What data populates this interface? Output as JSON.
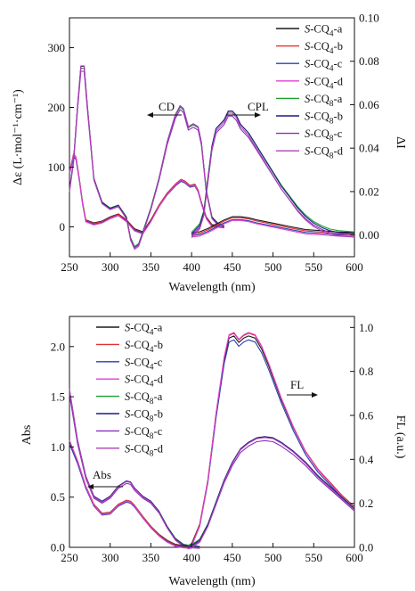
{
  "chart_data": [
    {
      "type": "line",
      "xlabel": "Wavelength (nm)",
      "ylabel_left": "Δε (L·mol⁻¹·cm⁻¹)",
      "ylabel_right": "ΔI",
      "xlim": [
        250,
        600
      ],
      "ylim_left": [
        -50,
        350
      ],
      "ylim_right": [
        -0.01,
        0.1
      ],
      "xticks": [
        "250",
        "300",
        "350",
        "400",
        "450",
        "500",
        "550",
        "600"
      ],
      "yticks_left": [
        "0",
        "100",
        "200",
        "300"
      ],
      "yticks_right": [
        "0.00",
        "0.02",
        "0.04",
        "0.06",
        "0.08",
        "0.10"
      ],
      "annotations": {
        "cd": "CD",
        "cpl": "CPL"
      },
      "legend": [
        {
          "prefix": "S",
          "base": "-CQ",
          "sub": "4",
          "suffix": "-a",
          "color": "#1a1a1a"
        },
        {
          "prefix": "S",
          "base": "-CQ",
          "sub": "4",
          "suffix": "-b",
          "color": "#e03030"
        },
        {
          "prefix": "S",
          "base": "-CQ",
          "sub": "4",
          "suffix": "-c",
          "color": "#2b3fb0"
        },
        {
          "prefix": "S",
          "base": "-CQ",
          "sub": "4",
          "suffix": "-d",
          "color": "#e040d0"
        },
        {
          "prefix": "S",
          "base": "-CQ",
          "sub": "8",
          "suffix": "-a",
          "color": "#1aa030"
        },
        {
          "prefix": "S",
          "base": "-CQ",
          "sub": "8",
          "suffix": "-b",
          "color": "#1c1c80"
        },
        {
          "prefix": "S",
          "base": "-CQ",
          "sub": "8",
          "suffix": "-c",
          "color": "#8a30c0"
        },
        {
          "prefix": "S",
          "base": "-CQ",
          "sub": "8",
          "suffix": "-d",
          "color": "#b040b0"
        }
      ],
      "series_cq4_cd": {
        "x": [
          250,
          255,
          258,
          262,
          266,
          270,
          280,
          290,
          300,
          310,
          320,
          330,
          340,
          350,
          360,
          370,
          380,
          387,
          392,
          398,
          404,
          408,
          412,
          418,
          425,
          440
        ],
        "y": [
          90,
          120,
          115,
          80,
          40,
          10,
          5,
          8,
          15,
          20,
          10,
          -5,
          -10,
          10,
          35,
          55,
          70,
          78,
          75,
          68,
          70,
          60,
          40,
          15,
          2,
          0
        ]
      },
      "series_cq8_cd": {
        "x": [
          250,
          255,
          260,
          264,
          268,
          272,
          280,
          290,
          300,
          310,
          320,
          325,
          330,
          335,
          340,
          350,
          360,
          370,
          380,
          386,
          390,
          396,
          402,
          408,
          412,
          418,
          425,
          432,
          440
        ],
        "y": [
          60,
          110,
          200,
          265,
          265,
          200,
          80,
          40,
          30,
          35,
          15,
          -20,
          -35,
          -30,
          -10,
          30,
          80,
          140,
          185,
          200,
          195,
          165,
          170,
          165,
          140,
          60,
          15,
          5,
          0
        ]
      },
      "series_cq4_cpl": {
        "x": [
          400,
          410,
          420,
          430,
          440,
          450,
          460,
          470,
          480,
          500,
          520,
          540,
          560,
          580,
          600
        ],
        "y": [
          0,
          0.0005,
          0.002,
          0.004,
          0.006,
          0.0075,
          0.0075,
          0.007,
          0.006,
          0.0045,
          0.003,
          0.0015,
          0.001,
          0.0004,
          0.0002
        ]
      },
      "series_cq8_cpl": {
        "x": [
          400,
          410,
          415,
          420,
          425,
          430,
          435,
          440,
          445,
          450,
          455,
          460,
          470,
          480,
          490,
          500,
          510,
          520,
          530,
          540,
          550,
          560,
          570,
          580,
          600
        ],
        "y": [
          0,
          0.004,
          0.01,
          0.025,
          0.04,
          0.048,
          0.05,
          0.052,
          0.056,
          0.056,
          0.054,
          0.05,
          0.046,
          0.04,
          0.034,
          0.028,
          0.022,
          0.017,
          0.012,
          0.008,
          0.005,
          0.003,
          0.0015,
          0.0008,
          0.0002
        ]
      }
    },
    {
      "type": "line",
      "xlabel": "Wavelength (nm)",
      "ylabel_left": "Abs",
      "ylabel_right": "FL (a.u.)",
      "xlim": [
        250,
        600
      ],
      "ylim_left": [
        0,
        2.3
      ],
      "ylim_right": [
        0,
        1.05
      ],
      "xticks": [
        "250",
        "300",
        "350",
        "400",
        "450",
        "500",
        "550",
        "600"
      ],
      "yticks_left": [
        "0.0",
        "0.5",
        "1.0",
        "1.5",
        "2.0"
      ],
      "yticks_right": [
        "0.0",
        "0.2",
        "0.4",
        "0.6",
        "0.8",
        "1.0"
      ],
      "annotations": {
        "abs": "Abs",
        "fl": "FL"
      },
      "legend": [
        {
          "prefix": "S",
          "base": "-CQ",
          "sub": "4",
          "suffix": "-a",
          "color": "#1a1a1a"
        },
        {
          "prefix": "S",
          "base": "-CQ",
          "sub": "4",
          "suffix": "-b",
          "color": "#e03030"
        },
        {
          "prefix": "S",
          "base": "-CQ",
          "sub": "4",
          "suffix": "-c",
          "color": "#2b3fb0"
        },
        {
          "prefix": "S",
          "base": "-CQ",
          "sub": "4",
          "suffix": "-d",
          "color": "#e040d0"
        },
        {
          "prefix": "S",
          "base": "-CQ",
          "sub": "8",
          "suffix": "-a",
          "color": "#1aa030"
        },
        {
          "prefix": "S",
          "base": "-CQ",
          "sub": "8",
          "suffix": "-b",
          "color": "#1c1c80"
        },
        {
          "prefix": "S",
          "base": "-CQ",
          "sub": "8",
          "suffix": "-c",
          "color": "#8a30c0"
        },
        {
          "prefix": "S",
          "base": "-CQ",
          "sub": "8",
          "suffix": "-d",
          "color": "#b040b0"
        }
      ],
      "series_cq8_abs": {
        "x": [
          250,
          260,
          270,
          280,
          290,
          300,
          310,
          320,
          325,
          330,
          340,
          350,
          360,
          370,
          380,
          390,
          400,
          410
        ],
        "y": [
          1.55,
          1.05,
          0.7,
          0.5,
          0.45,
          0.5,
          0.6,
          0.65,
          0.64,
          0.58,
          0.5,
          0.45,
          0.35,
          0.2,
          0.08,
          0.02,
          0.005,
          0
        ]
      },
      "series_cq4_abs": {
        "x": [
          250,
          260,
          270,
          280,
          290,
          300,
          310,
          320,
          325,
          330,
          340,
          350,
          360,
          370,
          380,
          390,
          400
        ],
        "y": [
          1.05,
          0.85,
          0.6,
          0.42,
          0.33,
          0.34,
          0.42,
          0.46,
          0.45,
          0.41,
          0.3,
          0.2,
          0.12,
          0.06,
          0.02,
          0.005,
          0
        ]
      },
      "series_cq8_fl": {
        "x": [
          395,
          400,
          410,
          420,
          430,
          440,
          446,
          452,
          458,
          464,
          470,
          478,
          486,
          495,
          510,
          525,
          540,
          555,
          570,
          585,
          600
        ],
        "y": [
          0,
          0.01,
          0.1,
          0.3,
          0.6,
          0.85,
          0.95,
          0.96,
          0.93,
          0.95,
          0.96,
          0.95,
          0.9,
          0.82,
          0.67,
          0.54,
          0.43,
          0.35,
          0.29,
          0.23,
          0.18
        ]
      },
      "series_cq4_fl": {
        "x": [
          395,
          400,
          410,
          420,
          430,
          440,
          450,
          460,
          470,
          480,
          490,
          500,
          510,
          525,
          540,
          555,
          570,
          585,
          600
        ],
        "y": [
          0,
          0.005,
          0.03,
          0.1,
          0.2,
          0.3,
          0.38,
          0.44,
          0.47,
          0.49,
          0.495,
          0.49,
          0.47,
          0.43,
          0.38,
          0.32,
          0.27,
          0.22,
          0.17
        ]
      }
    }
  ]
}
